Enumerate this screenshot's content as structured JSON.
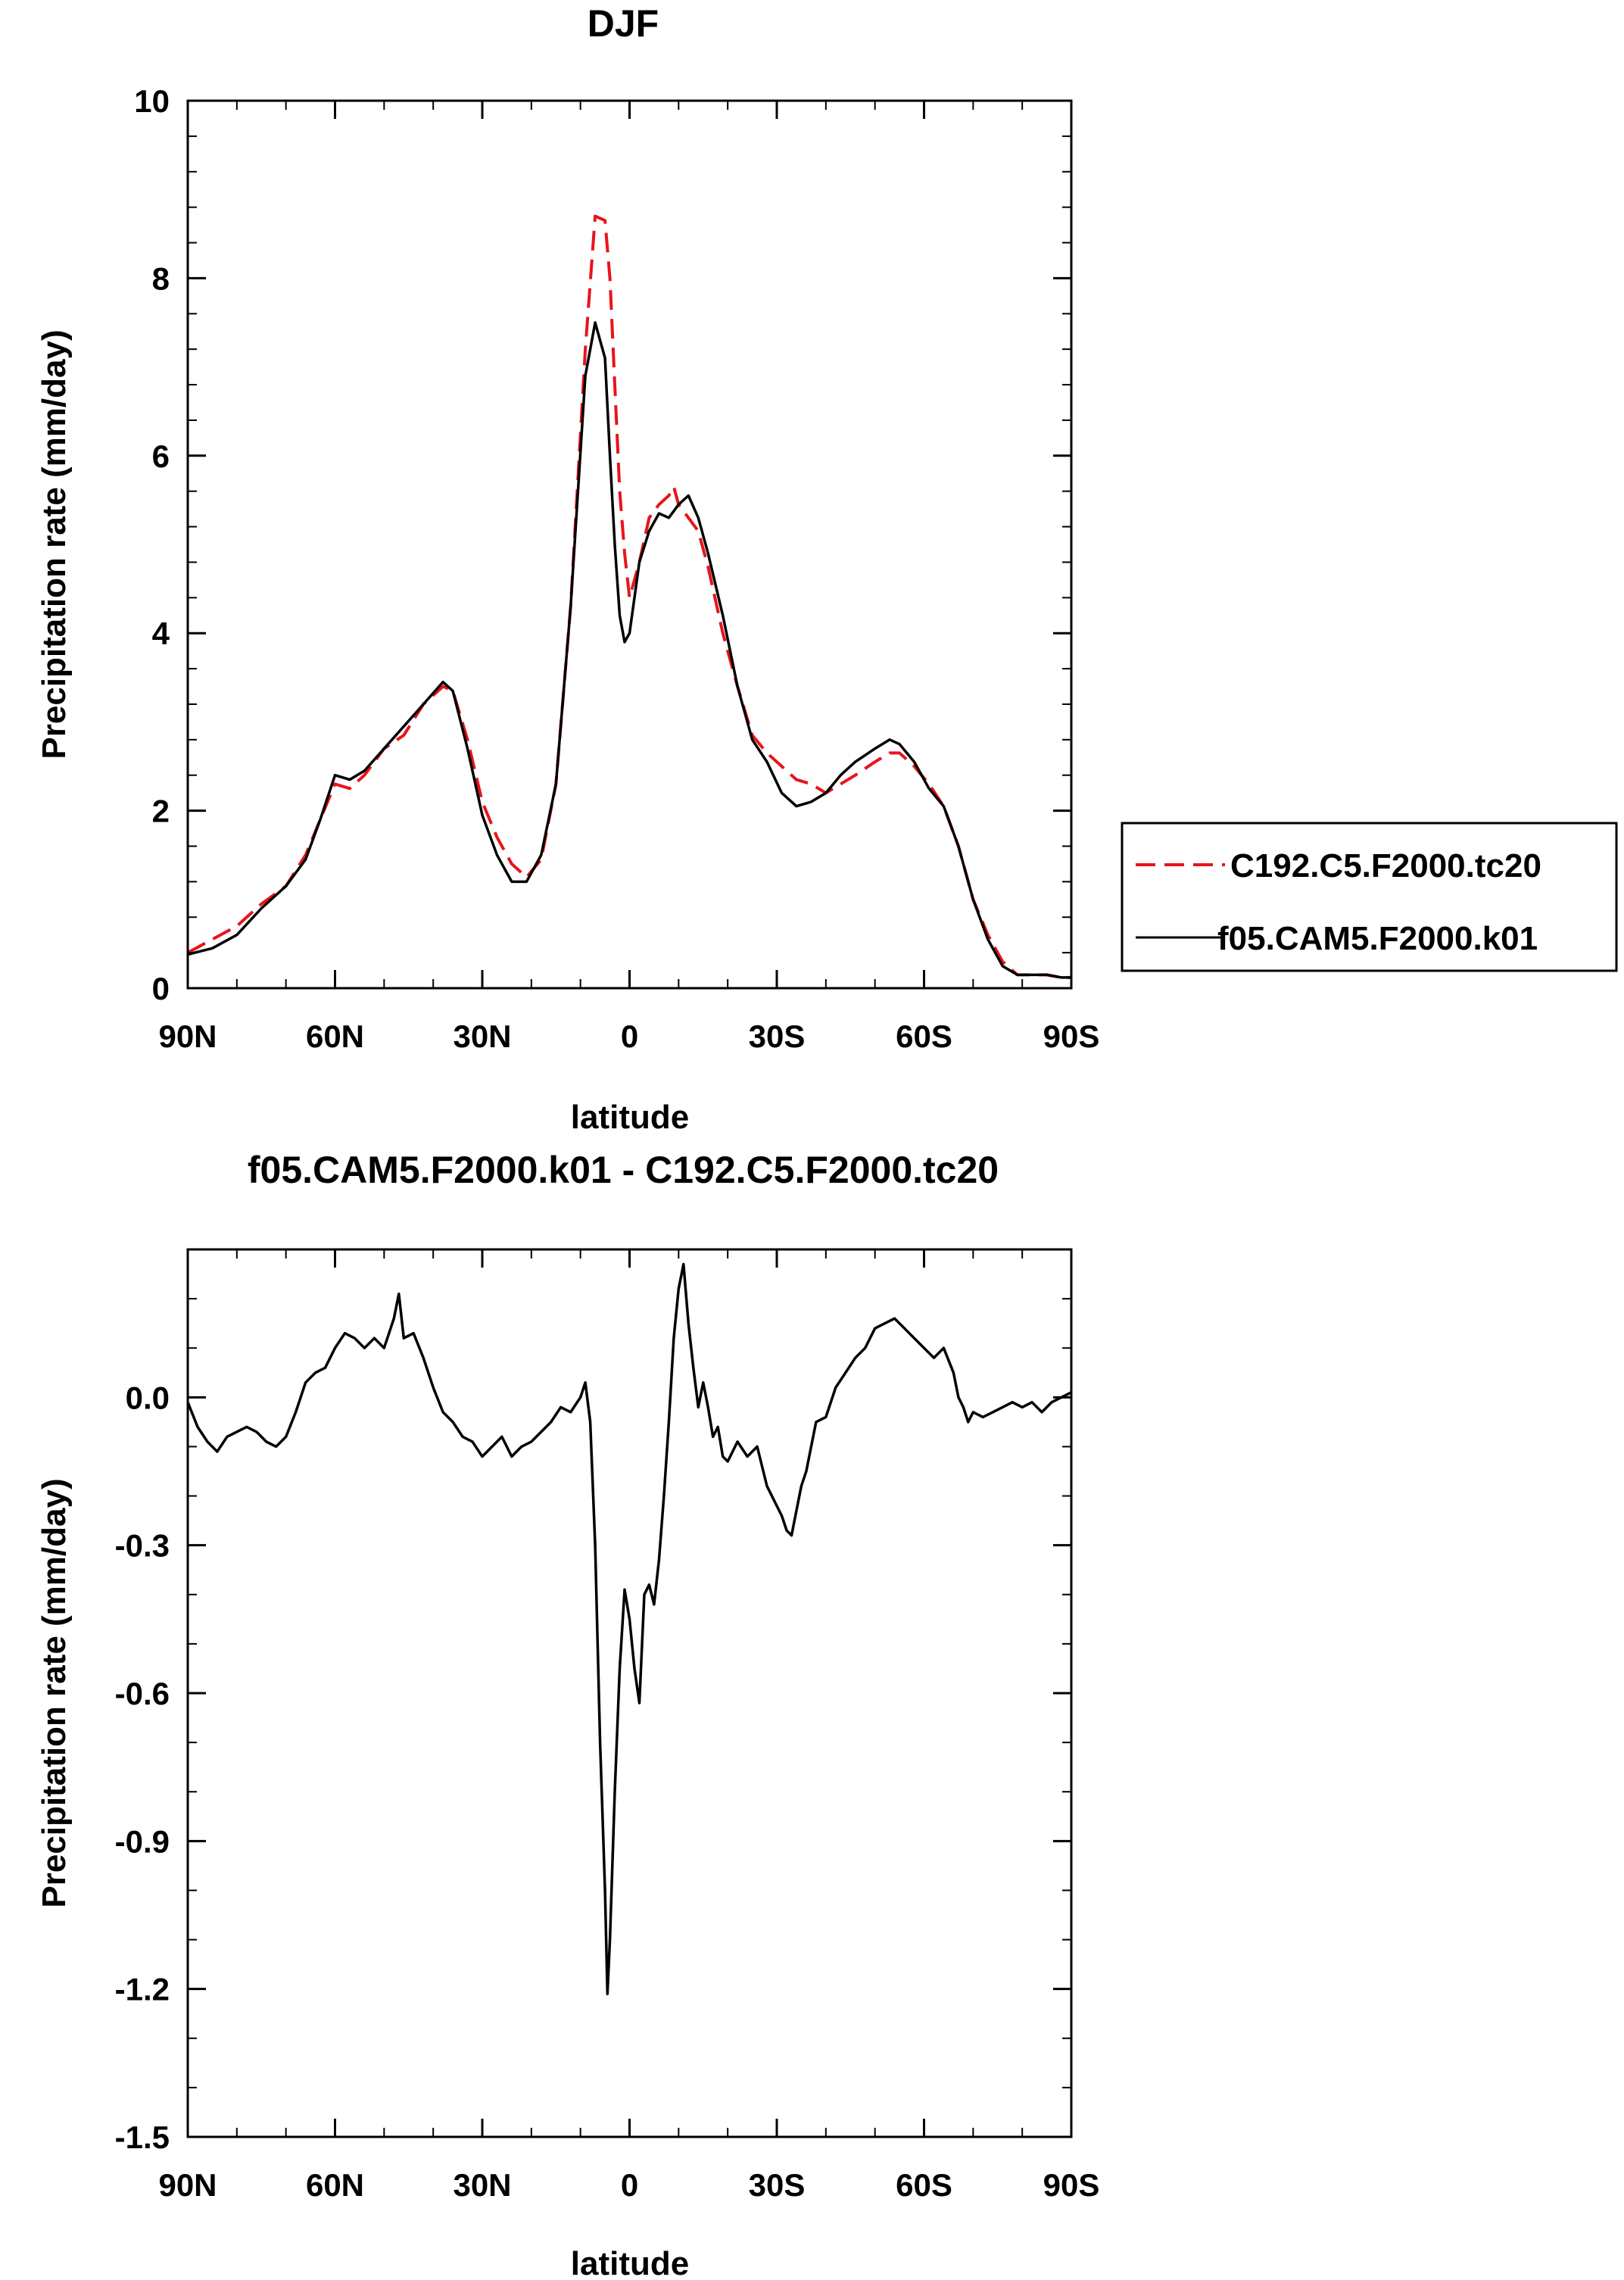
{
  "chart_data": [
    {
      "type": "line",
      "title": "DJF",
      "xlabel": "latitude",
      "ylabel": "Precipitation rate (mm/day)",
      "xlim": [
        90,
        -90
      ],
      "ylim": [
        0,
        10
      ],
      "x_ticks": [
        {
          "value": 90,
          "label": "90N"
        },
        {
          "value": 60,
          "label": "60N"
        },
        {
          "value": 30,
          "label": "30N"
        },
        {
          "value": 0,
          "label": "0"
        },
        {
          "value": -30,
          "label": "30S"
        },
        {
          "value": -60,
          "label": "60S"
        },
        {
          "value": -90,
          "label": "90S"
        }
      ],
      "y_ticks": [
        {
          "value": 0,
          "label": "0"
        },
        {
          "value": 2,
          "label": "2"
        },
        {
          "value": 4,
          "label": "4"
        },
        {
          "value": 6,
          "label": "6"
        },
        {
          "value": 8,
          "label": "8"
        },
        {
          "value": 10,
          "label": "10"
        }
      ],
      "legend_position": "right",
      "series": [
        {
          "name": "C192.C5.F2000.tc20",
          "color": "#e8141b",
          "dash": "dashed",
          "x": [
            90,
            85,
            80,
            75,
            70,
            66,
            63,
            60,
            57,
            54,
            50,
            46,
            42,
            38,
            36,
            33,
            30,
            27,
            24,
            21,
            18,
            15,
            12,
            9,
            7,
            5,
            4,
            3,
            2,
            1,
            0,
            -2,
            -4,
            -6,
            -8,
            -9,
            -10,
            -12,
            -14,
            -16,
            -19,
            -22,
            -25,
            -28,
            -31,
            -34,
            -37,
            -40,
            -43,
            -46,
            -50,
            -53,
            -55,
            -58,
            -61,
            -64,
            -67,
            -70,
            -73,
            -76,
            -79,
            -82,
            -85,
            -88,
            -90
          ],
          "y": [
            0.4,
            0.55,
            0.7,
            0.95,
            1.15,
            1.5,
            1.9,
            2.3,
            2.25,
            2.4,
            2.7,
            2.85,
            3.2,
            3.4,
            3.35,
            2.8,
            2.1,
            1.7,
            1.4,
            1.25,
            1.45,
            2.3,
            4.3,
            7.2,
            8.7,
            8.65,
            8.0,
            6.8,
            5.6,
            4.9,
            4.4,
            4.8,
            5.3,
            5.45,
            5.55,
            5.65,
            5.45,
            5.3,
            5.15,
            4.75,
            4.0,
            3.4,
            2.85,
            2.65,
            2.5,
            2.35,
            2.3,
            2.2,
            2.3,
            2.4,
            2.55,
            2.65,
            2.65,
            2.5,
            2.3,
            2.05,
            1.6,
            1.0,
            0.6,
            0.3,
            0.15,
            0.15,
            0.15,
            0.12,
            0.12
          ]
        },
        {
          "name": "f05.CAM5.F2000.k01",
          "color": "#000000",
          "dash": "solid",
          "x": [
            90,
            85,
            80,
            75,
            70,
            66,
            63,
            60,
            57,
            54,
            50,
            46,
            42,
            38,
            36,
            33,
            30,
            27,
            24,
            21,
            18,
            15,
            12,
            9,
            7,
            5,
            4,
            3,
            2,
            1,
            0,
            -2,
            -4,
            -6,
            -8,
            -10,
            -12,
            -14,
            -16,
            -19,
            -22,
            -25,
            -28,
            -31,
            -34,
            -37,
            -40,
            -43,
            -46,
            -50,
            -53,
            -55,
            -58,
            -61,
            -64,
            -67,
            -70,
            -73,
            -76,
            -79,
            -82,
            -85,
            -88,
            -90
          ],
          "y": [
            0.38,
            0.45,
            0.6,
            0.9,
            1.15,
            1.45,
            1.9,
            2.4,
            2.35,
            2.45,
            2.7,
            2.95,
            3.2,
            3.45,
            3.35,
            2.7,
            1.95,
            1.5,
            1.2,
            1.2,
            1.5,
            2.3,
            4.3,
            6.9,
            7.5,
            7.1,
            6.0,
            5.0,
            4.2,
            3.9,
            4.0,
            4.8,
            5.15,
            5.35,
            5.3,
            5.45,
            5.55,
            5.3,
            4.9,
            4.2,
            3.4,
            2.8,
            2.55,
            2.2,
            2.05,
            2.1,
            2.2,
            2.4,
            2.55,
            2.7,
            2.8,
            2.75,
            2.55,
            2.25,
            2.05,
            1.6,
            1.0,
            0.55,
            0.25,
            0.15,
            0.15,
            0.15,
            0.12,
            0.12
          ]
        }
      ]
    },
    {
      "type": "line",
      "title": "f05.CAM5.F2000.k01 - C192.C5.F2000.tc20",
      "xlabel": "latitude",
      "ylabel": "Precipitation rate (mm/day)",
      "xlim": [
        90,
        -90
      ],
      "ylim": [
        -1.5,
        0.3
      ],
      "x_ticks": [
        {
          "value": 90,
          "label": "90N"
        },
        {
          "value": 60,
          "label": "60N"
        },
        {
          "value": 30,
          "label": "30N"
        },
        {
          "value": 0,
          "label": "0"
        },
        {
          "value": -30,
          "label": "30S"
        },
        {
          "value": -60,
          "label": "60S"
        },
        {
          "value": -90,
          "label": "90S"
        }
      ],
      "y_ticks": [
        {
          "value": 0.0,
          "label": "0.0"
        },
        {
          "value": -0.3,
          "label": "-0.3"
        },
        {
          "value": -0.6,
          "label": "-0.6"
        },
        {
          "value": -0.9,
          "label": "-0.9"
        },
        {
          "value": -1.2,
          "label": "-1.2"
        },
        {
          "value": -1.5,
          "label": "-1.5"
        }
      ],
      "series": [
        {
          "color": "#000000",
          "dash": "solid",
          "x": [
            90,
            88,
            86,
            84,
            82,
            80,
            78,
            76,
            74,
            72,
            70,
            68,
            66,
            64,
            62,
            60,
            58,
            56,
            54,
            52,
            50,
            48,
            47,
            46,
            44,
            42,
            40,
            38,
            36,
            34,
            32,
            30,
            28,
            26,
            24,
            22,
            20,
            18,
            16,
            14,
            12,
            10,
            9,
            8,
            7,
            6,
            5,
            4.5,
            4,
            3,
            2,
            1,
            0,
            -1,
            -2,
            -3,
            -4,
            -5,
            -6,
            -7,
            -8,
            -9,
            -10,
            -11,
            -12,
            -13,
            -14,
            -15,
            -16,
            -17,
            -18,
            -19,
            -20,
            -22,
            -24,
            -26,
            -28,
            -30,
            -31,
            -32,
            -33,
            -34,
            -35,
            -36,
            -37,
            -38,
            -40,
            -42,
            -44,
            -46,
            -48,
            -50,
            -52,
            -54,
            -56,
            -58,
            -60,
            -62,
            -64,
            -66,
            -67,
            -68,
            -69,
            -70,
            -72,
            -74,
            -76,
            -78,
            -80,
            -82,
            -84,
            -86,
            -88,
            -90
          ],
          "y": [
            -0.01,
            -0.06,
            -0.09,
            -0.11,
            -0.08,
            -0.07,
            -0.06,
            -0.07,
            -0.09,
            -0.1,
            -0.08,
            -0.03,
            0.03,
            0.05,
            0.06,
            0.1,
            0.13,
            0.12,
            0.1,
            0.12,
            0.1,
            0.16,
            0.21,
            0.12,
            0.13,
            0.08,
            0.02,
            -0.03,
            -0.05,
            -0.08,
            -0.09,
            -0.12,
            -0.1,
            -0.08,
            -0.12,
            -0.1,
            -0.09,
            -0.07,
            -0.05,
            -0.02,
            -0.03,
            0.0,
            0.03,
            -0.05,
            -0.3,
            -0.7,
            -1.0,
            -1.21,
            -1.1,
            -0.8,
            -0.55,
            -0.39,
            -0.45,
            -0.55,
            -0.62,
            -0.4,
            -0.38,
            -0.42,
            -0.33,
            -0.2,
            -0.05,
            0.12,
            0.22,
            0.27,
            0.15,
            0.06,
            -0.02,
            0.03,
            -0.02,
            -0.08,
            -0.06,
            -0.12,
            -0.13,
            -0.09,
            -0.12,
            -0.1,
            -0.18,
            -0.22,
            -0.24,
            -0.27,
            -0.28,
            -0.23,
            -0.18,
            -0.15,
            -0.1,
            -0.05,
            -0.04,
            0.02,
            0.05,
            0.08,
            0.1,
            0.14,
            0.15,
            0.16,
            0.14,
            0.12,
            0.1,
            0.08,
            0.1,
            0.05,
            0.0,
            -0.02,
            -0.05,
            -0.03,
            -0.04,
            -0.03,
            -0.02,
            -0.01,
            -0.02,
            -0.01,
            -0.03,
            -0.01,
            0.0,
            0.01
          ]
        }
      ]
    }
  ]
}
